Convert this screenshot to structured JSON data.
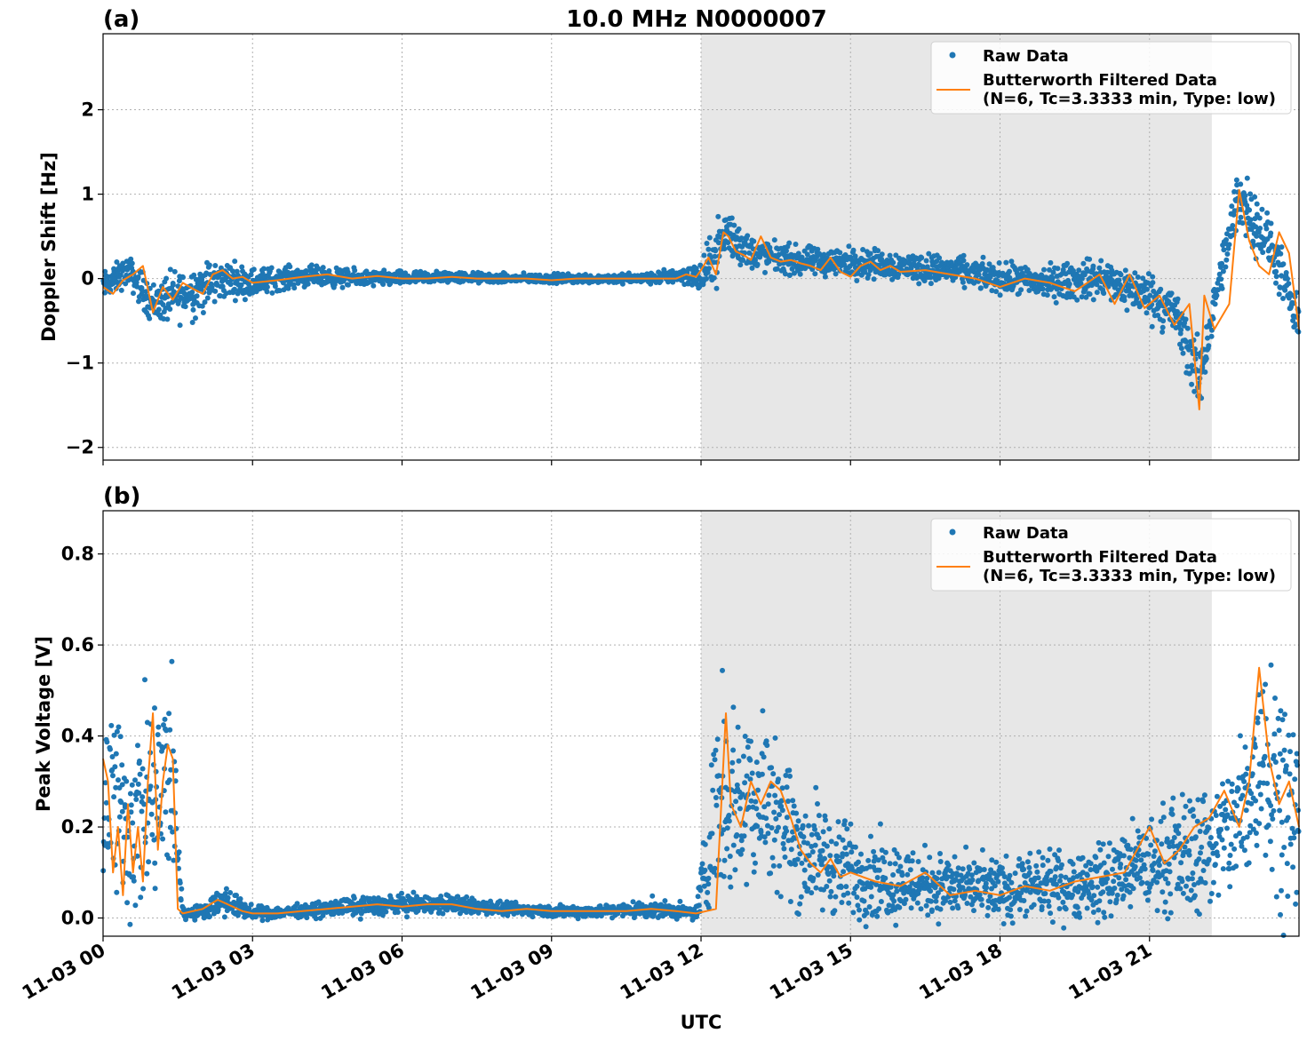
{
  "figure": {
    "title": "10.0 MHz N0000007",
    "xlabel": "UTC",
    "colors": {
      "raw": "#1f77b4",
      "filtered": "#ff7f0e",
      "shade": "#e7e7e7",
      "grid": "#b0b0b0"
    }
  },
  "chart_data": [
    {
      "type": "scatter",
      "panel_label": "(a)",
      "title": "10.0 MHz N0000007",
      "xlabel": "",
      "ylabel": "Doppler Shift [Hz]",
      "xlim": [
        0,
        24
      ],
      "ylim": [
        -2.15,
        2.9
      ],
      "yticks": [
        -2,
        -1,
        0,
        1,
        2
      ],
      "ytick_labels": [
        "−2",
        "−1",
        "0",
        "1",
        "2"
      ],
      "xticks": [
        0,
        3,
        6,
        9,
        12,
        15,
        18,
        21
      ],
      "xtick_labels": [
        "11-03 00",
        "11-03 03",
        "11-03 06",
        "11-03 09",
        "11-03 12",
        "11-03 15",
        "11-03 18",
        "11-03 21"
      ],
      "grid": true,
      "legend_location": "upper right",
      "legend": [
        "Raw Data",
        "Butterworth Filtered Data",
        "(N=6, Tc=3.3333 min, Type: low)"
      ],
      "shaded_interval_hours": [
        12.0,
        22.25
      ],
      "series": [
        {
          "name": "Butterworth Filtered Data",
          "style": "line",
          "x": [
            0,
            0.2,
            0.4,
            0.6,
            0.8,
            1.0,
            1.2,
            1.4,
            1.6,
            1.8,
            2.0,
            2.2,
            2.4,
            2.6,
            2.8,
            3.0,
            3.5,
            4.0,
            4.5,
            5.0,
            5.5,
            6.0,
            6.5,
            7.0,
            7.5,
            8.0,
            8.5,
            9.0,
            9.5,
            10.0,
            10.5,
            11.0,
            11.5,
            11.7,
            11.9,
            12.0,
            12.15,
            12.3,
            12.45,
            12.55,
            12.7,
            12.85,
            13.0,
            13.2,
            13.4,
            13.6,
            13.8,
            14.0,
            14.2,
            14.4,
            14.6,
            14.8,
            15.0,
            15.2,
            15.4,
            15.6,
            15.8,
            16.0,
            16.5,
            17.0,
            17.5,
            18.0,
            18.5,
            19.0,
            19.5,
            20.0,
            20.3,
            20.6,
            20.9,
            21.2,
            21.5,
            21.8,
            22.0,
            22.1,
            22.3,
            22.6,
            22.8,
            23.0,
            23.2,
            23.4,
            23.6,
            23.8,
            24.0
          ],
          "y": [
            -0.1,
            -0.18,
            -0.02,
            0.05,
            0.15,
            -0.4,
            -0.1,
            -0.25,
            -0.05,
            -0.12,
            -0.18,
            0.05,
            0.1,
            0.0,
            0.02,
            -0.05,
            -0.02,
            0.02,
            0.05,
            0.0,
            0.03,
            0.0,
            0.0,
            0.02,
            0.0,
            0.0,
            0.0,
            -0.02,
            0.0,
            0.0,
            0.0,
            0.0,
            0.0,
            0.05,
            0.02,
            0.1,
            0.25,
            0.05,
            0.55,
            0.5,
            0.32,
            0.28,
            0.22,
            0.5,
            0.25,
            0.2,
            0.22,
            0.18,
            0.15,
            0.1,
            0.25,
            0.08,
            0.02,
            0.15,
            0.2,
            0.1,
            0.15,
            0.08,
            0.1,
            0.05,
            0.0,
            -0.1,
            0.0,
            -0.05,
            -0.15,
            0.05,
            -0.3,
            0.05,
            -0.35,
            -0.2,
            -0.55,
            -0.3,
            -1.55,
            -0.2,
            -0.6,
            -0.3,
            1.05,
            0.45,
            0.15,
            0.05,
            0.55,
            0.3,
            -0.6
          ]
        },
        {
          "name": "Raw Data",
          "style": "points",
          "x": [
            0,
            0.5,
            1.0,
            1.5,
            2.0,
            2.5,
            3.0,
            3.5,
            4.0,
            5.0,
            6.0,
            7.0,
            8.0,
            9.0,
            10.0,
            11.0,
            11.7,
            12.0,
            12.3,
            12.5,
            13.0,
            13.5,
            14.0,
            15.0,
            16.0,
            17.0,
            18.0,
            19.0,
            20.0,
            21.0,
            21.5,
            22.0,
            22.3,
            22.8,
            23.5,
            24.0
          ],
          "y_center": [
            -0.1,
            0.1,
            -0.3,
            -0.2,
            -0.1,
            0.0,
            -0.05,
            0.0,
            0.03,
            0.0,
            0.0,
            0.02,
            0.0,
            0.0,
            0.0,
            0.0,
            0.05,
            0.0,
            0.3,
            0.55,
            0.3,
            0.25,
            0.2,
            0.2,
            0.15,
            0.1,
            0.0,
            -0.05,
            0.0,
            -0.2,
            -0.4,
            -1.2,
            -0.3,
            1.0,
            0.3,
            -0.6
          ],
          "y_spread": [
            0.25,
            0.25,
            0.35,
            0.45,
            0.45,
            0.3,
            0.25,
            0.2,
            0.18,
            0.15,
            0.12,
            0.1,
            0.08,
            0.08,
            0.08,
            0.1,
            0.15,
            0.3,
            0.5,
            0.5,
            0.3,
            0.25,
            0.25,
            0.25,
            0.25,
            0.25,
            0.25,
            0.3,
            0.35,
            0.4,
            0.45,
            0.6,
            0.3,
            0.6,
            0.45,
            0.4
          ]
        }
      ]
    },
    {
      "type": "scatter",
      "panel_label": "(b)",
      "title": "",
      "xlabel": "UTC",
      "ylabel": "Peak Voltage [V]",
      "xlim": [
        0,
        24
      ],
      "ylim": [
        -0.04,
        0.895
      ],
      "yticks": [
        0.0,
        0.2,
        0.4,
        0.6,
        0.8
      ],
      "ytick_labels": [
        "0.0",
        "0.2",
        "0.4",
        "0.6",
        "0.8"
      ],
      "xticks": [
        0,
        3,
        6,
        9,
        12,
        15,
        18,
        21
      ],
      "xtick_labels": [
        "11-03 00",
        "11-03 03",
        "11-03 06",
        "11-03 09",
        "11-03 12",
        "11-03 15",
        "11-03 18",
        "11-03 21"
      ],
      "grid": true,
      "legend_location": "upper right",
      "legend": [
        "Raw Data",
        "Butterworth Filtered Data",
        "(N=6, Tc=3.3333 min, Type: low)"
      ],
      "shaded_interval_hours": [
        12.0,
        22.25
      ],
      "series": [
        {
          "name": "Butterworth Filtered Data",
          "style": "line",
          "x": [
            0,
            0.1,
            0.2,
            0.3,
            0.4,
            0.5,
            0.6,
            0.7,
            0.8,
            0.9,
            1.0,
            1.1,
            1.2,
            1.3,
            1.4,
            1.5,
            1.6,
            2.0,
            2.3,
            2.5,
            2.8,
            3.0,
            3.5,
            4.0,
            4.5,
            5.0,
            5.5,
            6.0,
            6.5,
            7.0,
            7.5,
            8.0,
            8.5,
            9.0,
            9.5,
            10.0,
            10.5,
            11.0,
            11.5,
            11.9,
            12.3,
            12.5,
            12.6,
            12.8,
            13.0,
            13.2,
            13.4,
            13.6,
            13.8,
            14.0,
            14.2,
            14.4,
            14.6,
            14.8,
            15.0,
            15.5,
            16.0,
            16.5,
            17.0,
            17.5,
            18.0,
            18.5,
            19.0,
            19.5,
            20.0,
            20.5,
            21.0,
            21.3,
            21.6,
            21.9,
            22.2,
            22.5,
            22.8,
            23.0,
            23.2,
            23.4,
            23.6,
            23.8,
            24.0
          ],
          "y": [
            0.35,
            0.3,
            0.1,
            0.2,
            0.05,
            0.25,
            0.1,
            0.2,
            0.08,
            0.3,
            0.45,
            0.15,
            0.3,
            0.38,
            0.35,
            0.02,
            0.01,
            0.02,
            0.04,
            0.03,
            0.015,
            0.01,
            0.01,
            0.015,
            0.02,
            0.025,
            0.03,
            0.025,
            0.03,
            0.03,
            0.02,
            0.015,
            0.02,
            0.015,
            0.015,
            0.015,
            0.015,
            0.02,
            0.015,
            0.01,
            0.02,
            0.45,
            0.25,
            0.2,
            0.3,
            0.25,
            0.3,
            0.28,
            0.22,
            0.15,
            0.12,
            0.1,
            0.13,
            0.09,
            0.1,
            0.08,
            0.07,
            0.1,
            0.05,
            0.06,
            0.05,
            0.07,
            0.06,
            0.08,
            0.09,
            0.1,
            0.2,
            0.12,
            0.15,
            0.2,
            0.22,
            0.28,
            0.2,
            0.3,
            0.55,
            0.35,
            0.25,
            0.3,
            0.2
          ]
        },
        {
          "name": "Raw Data",
          "style": "points",
          "x": [
            0,
            0.5,
            1.0,
            1.4,
            1.6,
            2.0,
            2.4,
            3.0,
            4.0,
            5.0,
            6.0,
            7.0,
            8.0,
            9.0,
            10.0,
            11.0,
            11.9,
            12.4,
            12.6,
            13.0,
            13.5,
            14.0,
            15.0,
            16.0,
            17.0,
            18.0,
            19.0,
            20.0,
            21.0,
            22.0,
            22.5,
            23.0,
            23.3,
            23.6,
            24.0
          ],
          "y_center": [
            0.3,
            0.2,
            0.25,
            0.3,
            0.01,
            0.015,
            0.04,
            0.01,
            0.015,
            0.025,
            0.03,
            0.03,
            0.02,
            0.015,
            0.015,
            0.02,
            0.01,
            0.3,
            0.25,
            0.28,
            0.25,
            0.15,
            0.1,
            0.08,
            0.07,
            0.06,
            0.07,
            0.08,
            0.12,
            0.15,
            0.18,
            0.25,
            0.4,
            0.3,
            0.2
          ],
          "y_spread": [
            0.35,
            0.3,
            0.35,
            0.35,
            0.02,
            0.02,
            0.05,
            0.02,
            0.02,
            0.03,
            0.03,
            0.03,
            0.02,
            0.02,
            0.02,
            0.03,
            0.02,
            0.35,
            0.3,
            0.3,
            0.25,
            0.2,
            0.15,
            0.12,
            0.1,
            0.1,
            0.1,
            0.12,
            0.15,
            0.2,
            0.2,
            0.3,
            0.4,
            0.35,
            0.3
          ]
        }
      ]
    }
  ]
}
